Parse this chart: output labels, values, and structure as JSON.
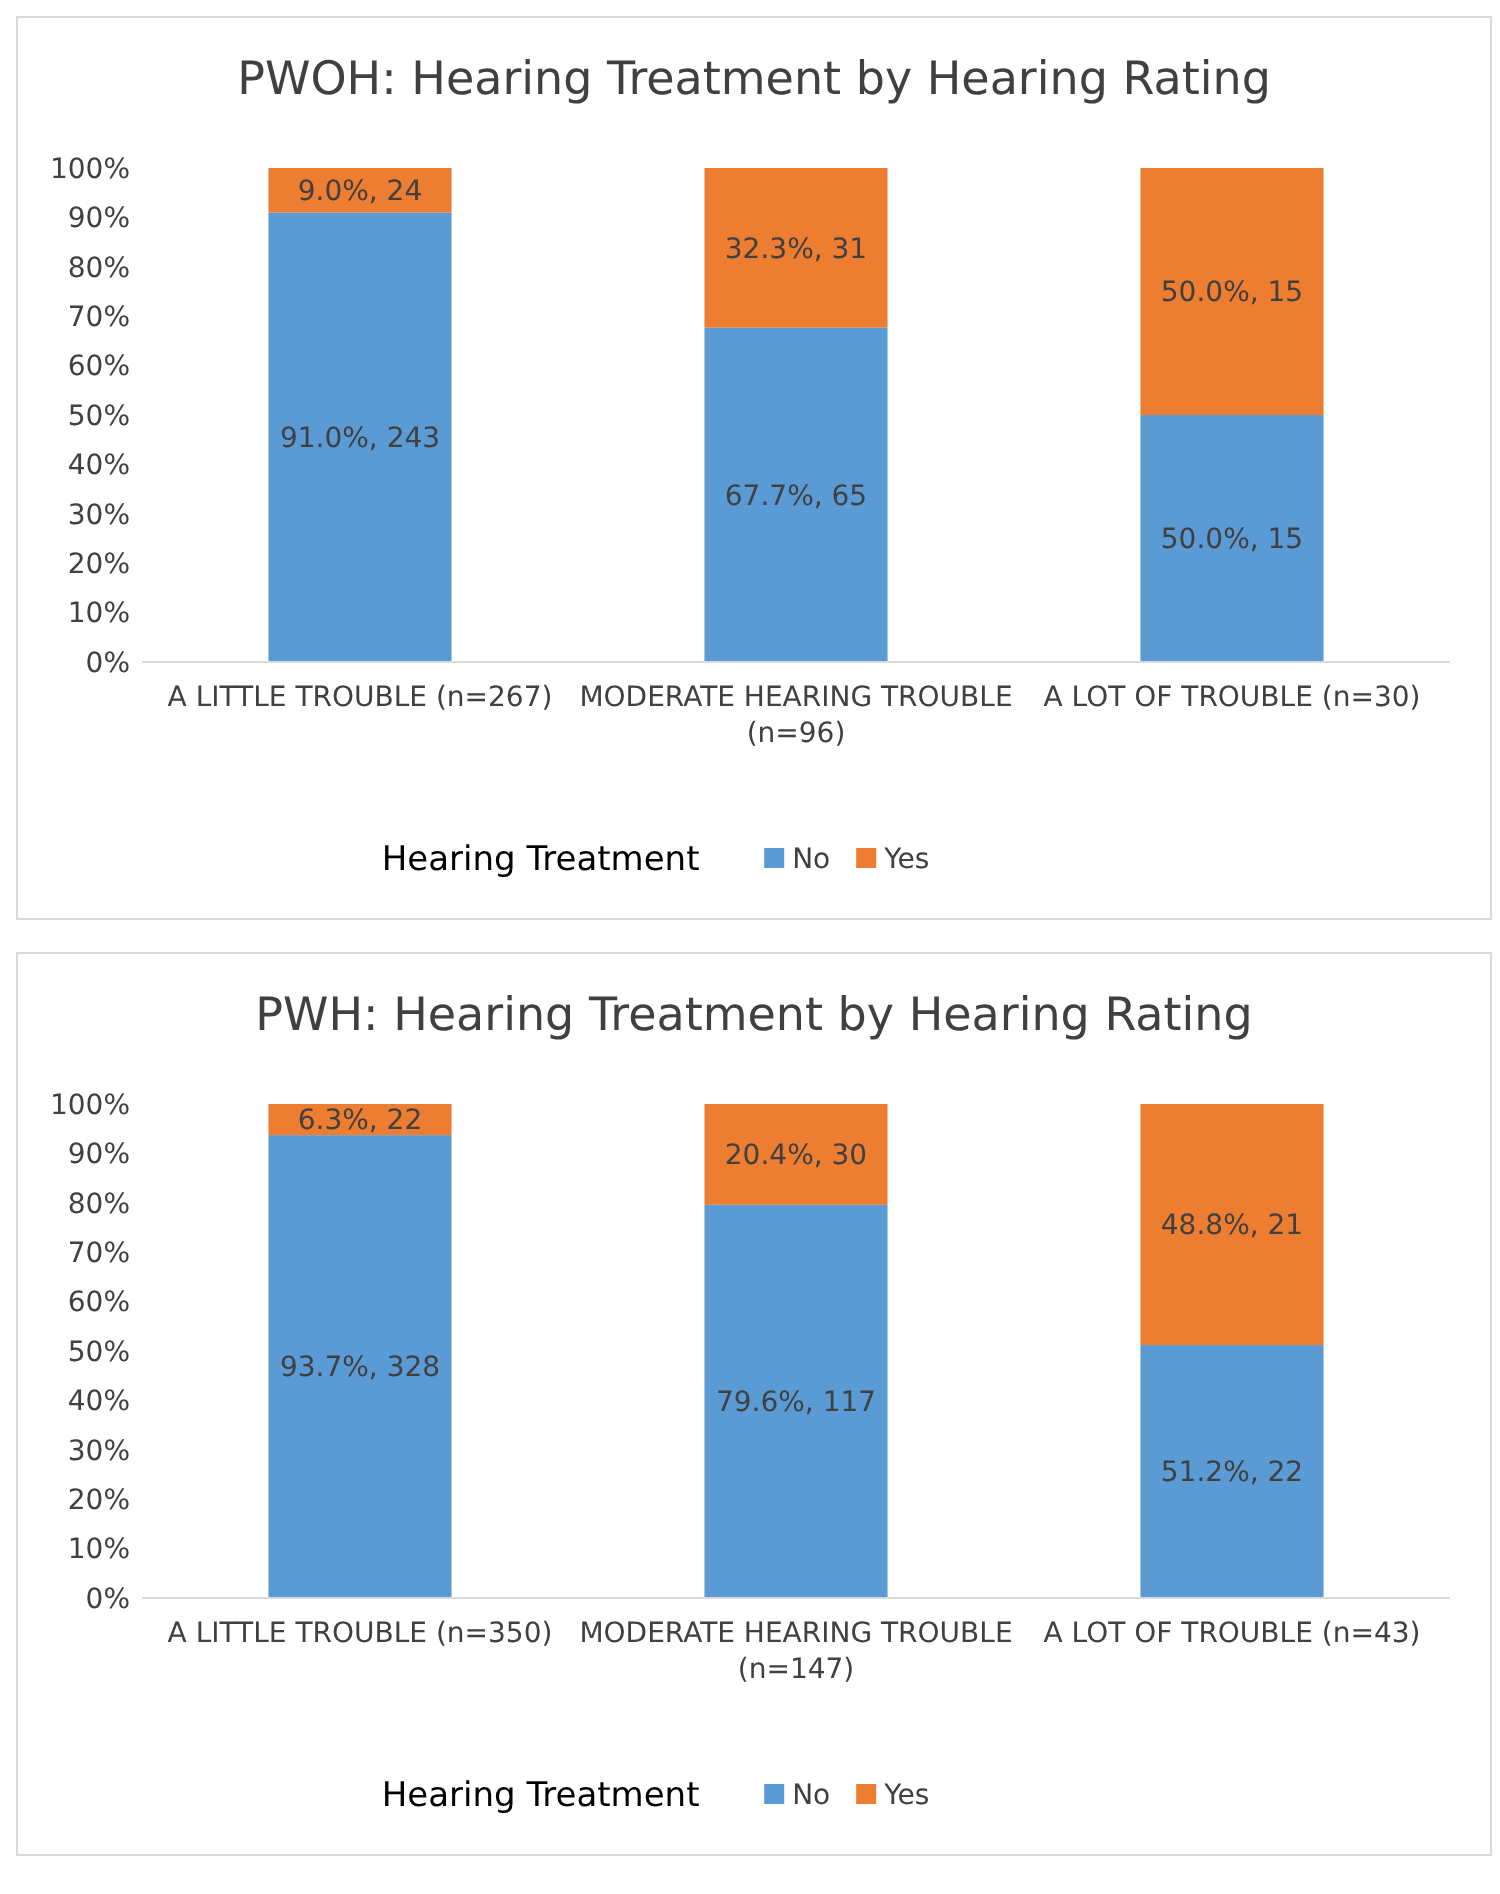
{
  "chart_data": [
    {
      "type": "bar",
      "stacked": true,
      "title": "PWOH: Hearing Treatment by Hearing Rating",
      "categories": [
        "A LITTLE TROUBLE (n=267)",
        "MODERATE HEARING TROUBLE (n=96)",
        "A LOT OF TROUBLE (n=30)"
      ],
      "ylim": [
        0,
        100
      ],
      "yticks": [
        {
          "value": 0,
          "label": "0%"
        },
        {
          "value": 10,
          "label": "10%"
        },
        {
          "value": 20,
          "label": "20%"
        },
        {
          "value": 30,
          "label": "30%"
        },
        {
          "value": 40,
          "label": "40%"
        },
        {
          "value": 50,
          "label": "50%"
        },
        {
          "value": 60,
          "label": "60%"
        },
        {
          "value": 70,
          "label": "70%"
        },
        {
          "value": 80,
          "label": "80%"
        },
        {
          "value": 90,
          "label": "90%"
        },
        {
          "value": 100,
          "label": "100%"
        }
      ],
      "legend": "bottom",
      "legend_title": "Hearing Treatment",
      "series": [
        {
          "name": "No",
          "color": "#5b9bd5",
          "values": [
            91.0,
            67.7,
            50.0
          ],
          "value_labels": [
            "91.0%, 243",
            "67.7%, 65",
            "50.0%, 15"
          ]
        },
        {
          "name": "Yes",
          "color": "#ed7d31",
          "values": [
            9.0,
            32.3,
            50.0
          ],
          "value_labels": [
            "9.0%, 24",
            "32.3%, 31",
            "50.0%, 15"
          ]
        }
      ]
    },
    {
      "type": "bar",
      "stacked": true,
      "title": "PWH: Hearing Treatment by Hearing Rating",
      "categories": [
        "A LITTLE TROUBLE (n=350)",
        "MODERATE HEARING TROUBLE (n=147)",
        "A LOT OF TROUBLE (n=43)"
      ],
      "ylim": [
        0,
        100
      ],
      "yticks": [
        {
          "value": 0,
          "label": "0%"
        },
        {
          "value": 10,
          "label": "10%"
        },
        {
          "value": 20,
          "label": "20%"
        },
        {
          "value": 30,
          "label": "30%"
        },
        {
          "value": 40,
          "label": "40%"
        },
        {
          "value": 50,
          "label": "50%"
        },
        {
          "value": 60,
          "label": "60%"
        },
        {
          "value": 70,
          "label": "70%"
        },
        {
          "value": 80,
          "label": "80%"
        },
        {
          "value": 90,
          "label": "90%"
        },
        {
          "value": 100,
          "label": "100%"
        }
      ],
      "legend": "bottom",
      "legend_title": "Hearing Treatment",
      "series": [
        {
          "name": "No",
          "color": "#5b9bd5",
          "values": [
            93.7,
            79.6,
            51.2
          ],
          "value_labels": [
            "93.7%, 328",
            "79.6%, 117",
            "51.2%, 22"
          ]
        },
        {
          "name": "Yes",
          "color": "#ed7d31",
          "values": [
            6.3,
            20.4,
            48.8
          ],
          "value_labels": [
            "6.3%, 22",
            "20.4%, 30",
            "48.8%, 21"
          ]
        }
      ]
    }
  ]
}
